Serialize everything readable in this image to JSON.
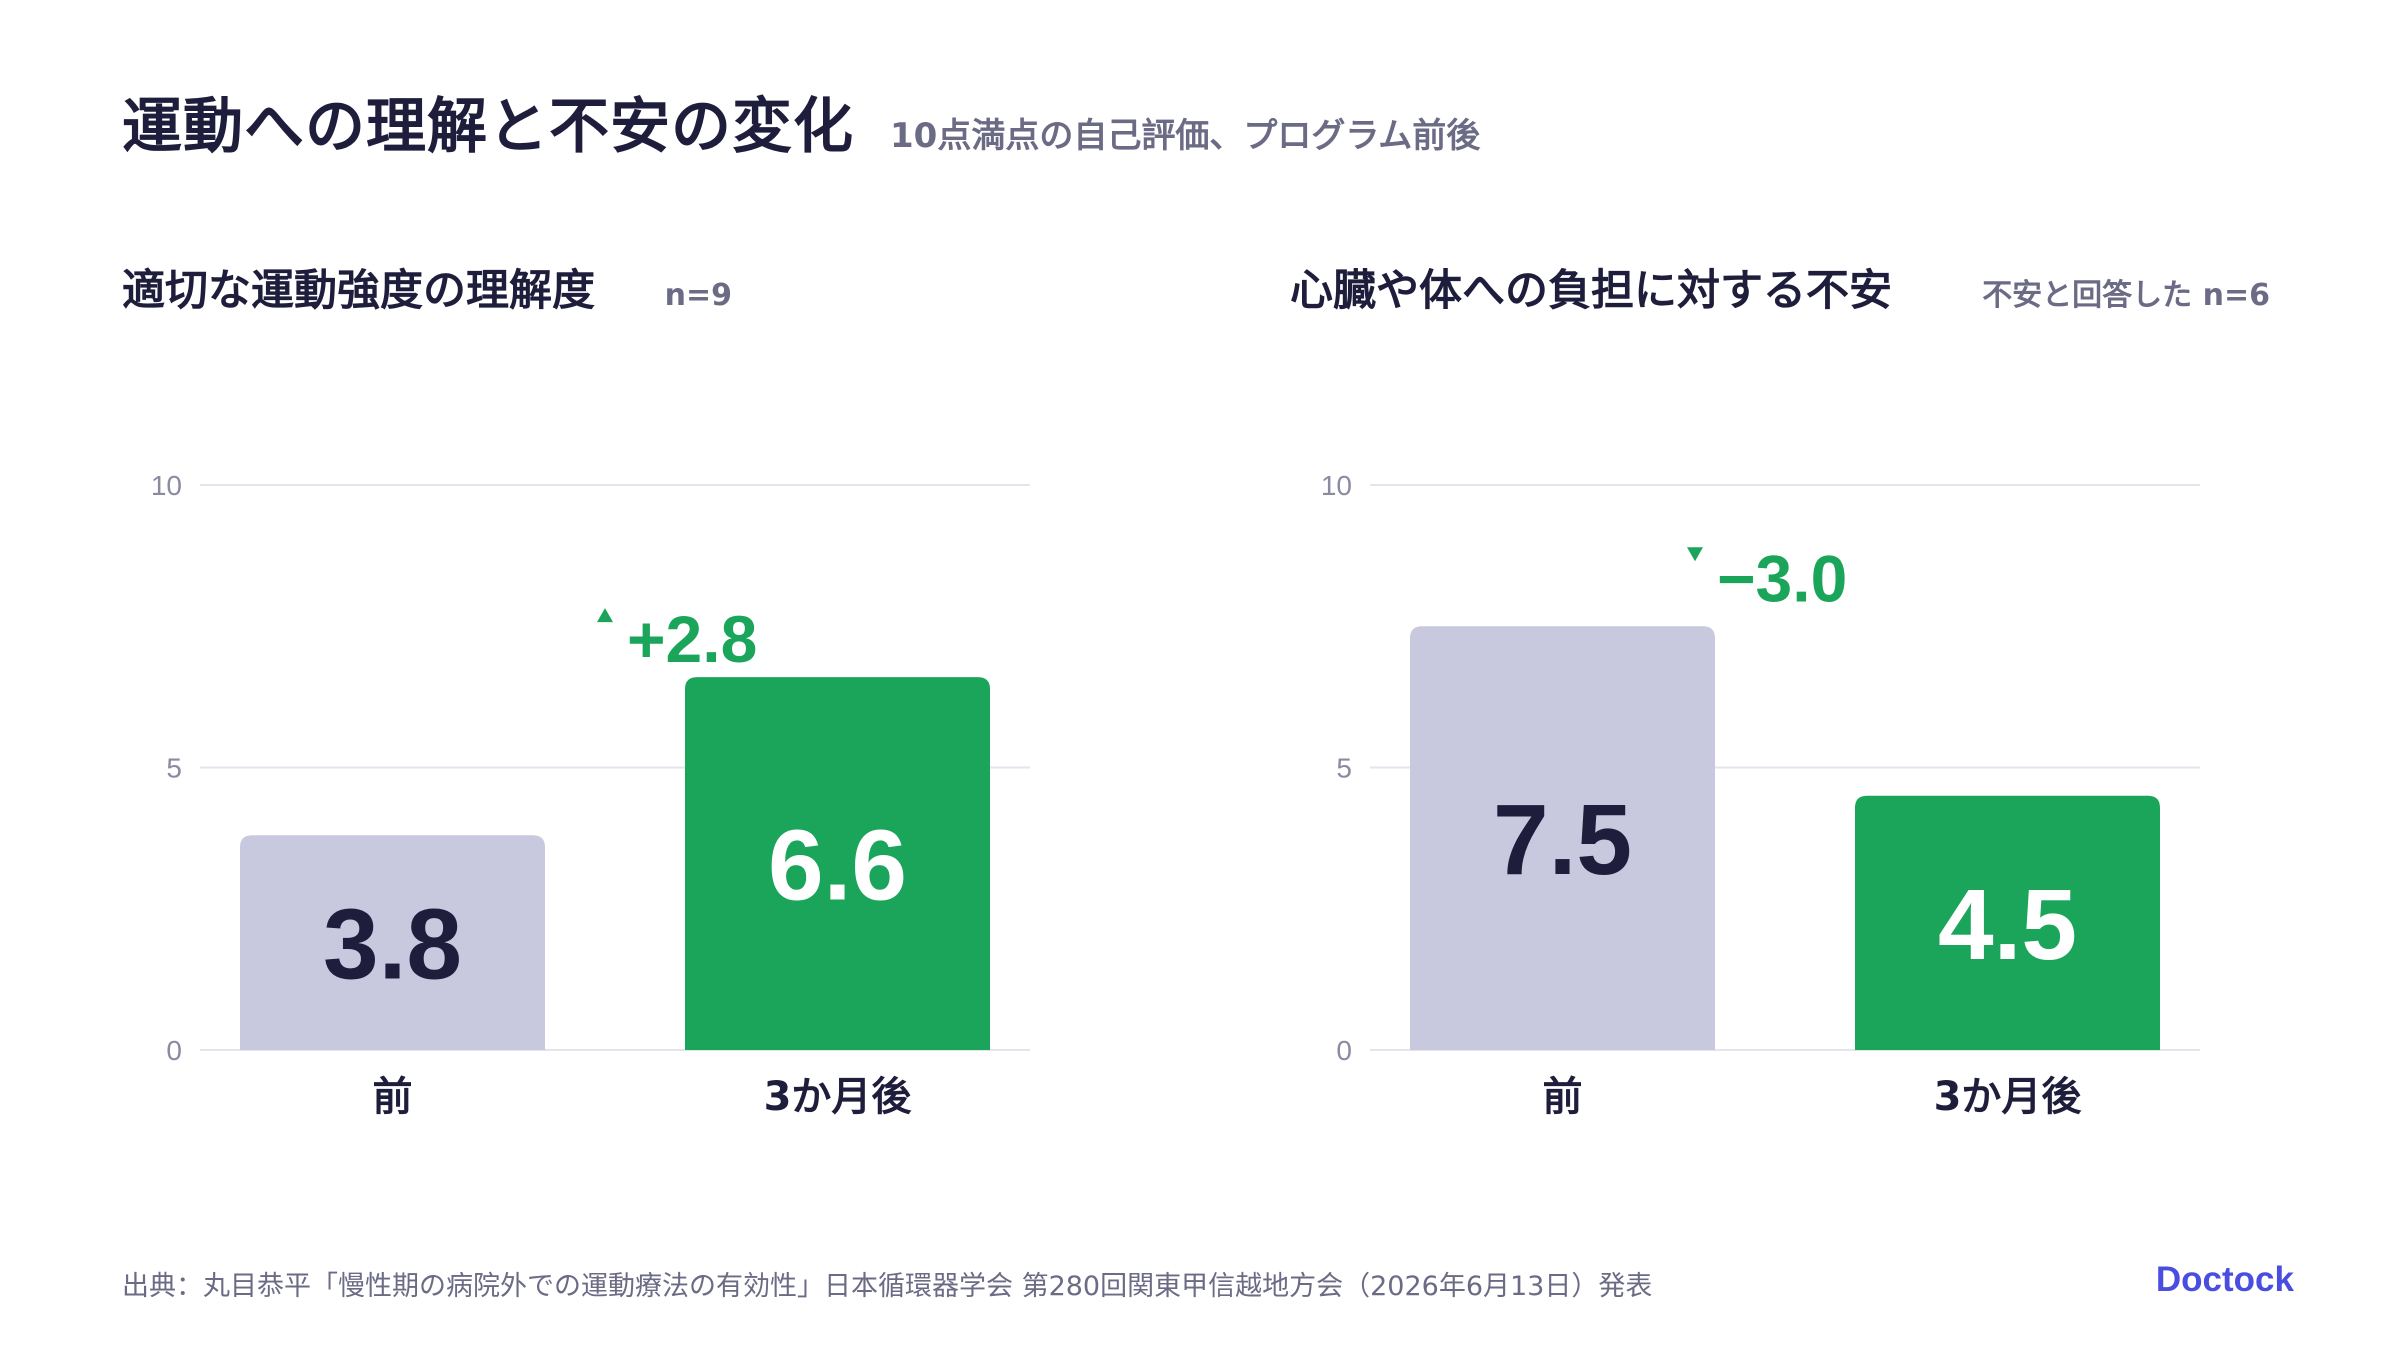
{
  "title": "運動への理解と不安の変化",
  "subtitle": "10点満点の自己評価、プログラム前後",
  "colors": {
    "before": "#c8c8df",
    "after": "#1aa55a",
    "grid": "#e4e4ee",
    "text_dark": "#1e1e3c",
    "text_muted": "#6b6b85",
    "accent_change": "#1aa55a",
    "brand": "#4a4ee0"
  },
  "chart_data": [
    {
      "type": "bar",
      "title": "適切な運動強度の理解度",
      "note": "n=9",
      "categories": [
        "前",
        "3か月後"
      ],
      "values": [
        3.8,
        6.6
      ],
      "value_labels": [
        "3.8",
        "6.6"
      ],
      "ylim": [
        0,
        10
      ],
      "yticks": [
        0,
        5,
        10
      ],
      "ytick_labels": [
        "0",
        "5",
        "10"
      ],
      "change_label": "+2.8",
      "change_direction": "up",
      "grid": true
    },
    {
      "type": "bar",
      "title": "心臓や体への負担に対する不安",
      "note": "不安と回答した n=6",
      "categories": [
        "前",
        "3か月後"
      ],
      "values": [
        7.5,
        4.5
      ],
      "value_labels": [
        "7.5",
        "4.5"
      ],
      "ylim": [
        0,
        10
      ],
      "yticks": [
        0,
        5,
        10
      ],
      "ytick_labels": [
        "0",
        "5",
        "10"
      ],
      "change_label": "−3.0",
      "change_direction": "down",
      "grid": true
    }
  ],
  "footer": "出典：丸目恭平「慢性期の病院外での運動療法の有効性」日本循環器学会 第280回関東甲信越地方会（2026年6月13日）発表",
  "brand": "Doctock"
}
